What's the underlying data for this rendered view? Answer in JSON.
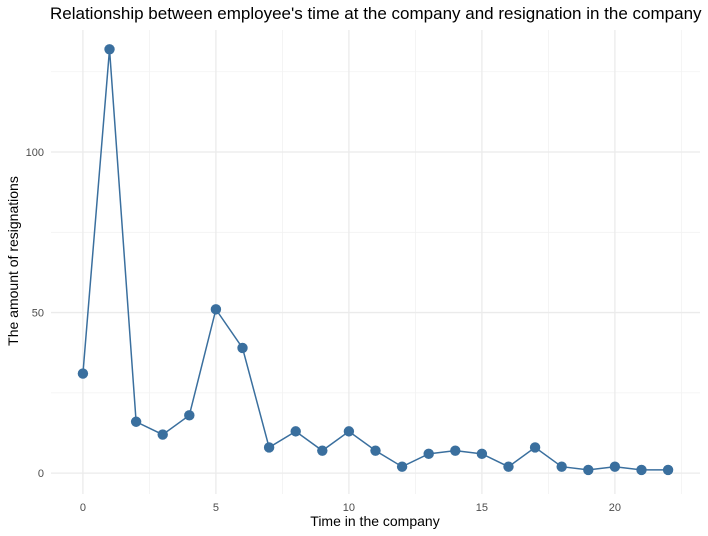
{
  "chart_data": {
    "type": "line",
    "title": "Relationship between employee's time at the company and resignation in the company",
    "xlabel": "Time in the company",
    "ylabel": "The amount of resignations",
    "xlim": [
      -1.2,
      23.2
    ],
    "ylim": [
      -6.5,
      138
    ],
    "xticks": [
      0,
      5,
      10,
      15,
      20
    ],
    "yticks": [
      0,
      50,
      100
    ],
    "grid": true,
    "series": [
      {
        "color": "#3a6f9e",
        "x": [
          0,
          1,
          2,
          3,
          4,
          5,
          6,
          7,
          8,
          9,
          10,
          11,
          12,
          13,
          14,
          15,
          16,
          17,
          18,
          19,
          20,
          21,
          22
        ],
        "y": [
          31,
          132,
          16,
          12,
          18,
          51,
          39,
          8,
          13,
          7,
          13,
          7,
          2,
          6,
          7,
          6,
          2,
          8,
          2,
          1,
          2,
          1,
          1
        ]
      }
    ]
  }
}
